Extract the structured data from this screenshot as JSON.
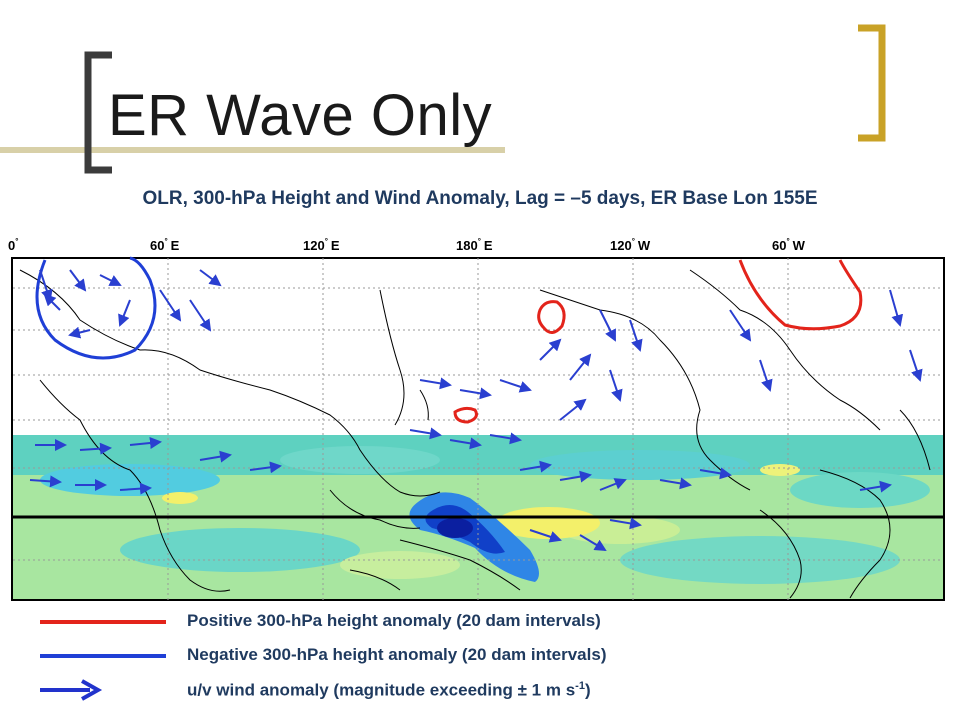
{
  "slide": {
    "title": "ER Wave Only",
    "subtitle": "OLR, 300-hPa Height and Wind Anomaly, Lag = –5 days, ER Base Lon 155E"
  },
  "map": {
    "lon_labels": [
      "0",
      "60",
      "120",
      "180",
      "120",
      "60"
    ],
    "lon_suffix": [
      "",
      "E",
      "E",
      "E",
      "W",
      "W"
    ],
    "degree_mark": "°"
  },
  "legend": {
    "positive": {
      "text": "Positive 300-hPa height anomaly (20 dam intervals)",
      "color": "#e3241b"
    },
    "negative": {
      "text": "Negative 300-hPa height anomaly (20 dam intervals)",
      "color": "#1f3fd6"
    },
    "wind": {
      "text": "u/v wind anomaly (magnitude exceeding ± 1 m s",
      "sup": "-1",
      "close": ")",
      "color": "#2233cc"
    }
  },
  "colors": {
    "accent": "#c9a227",
    "accent_light": "#d9cfa0"
  }
}
